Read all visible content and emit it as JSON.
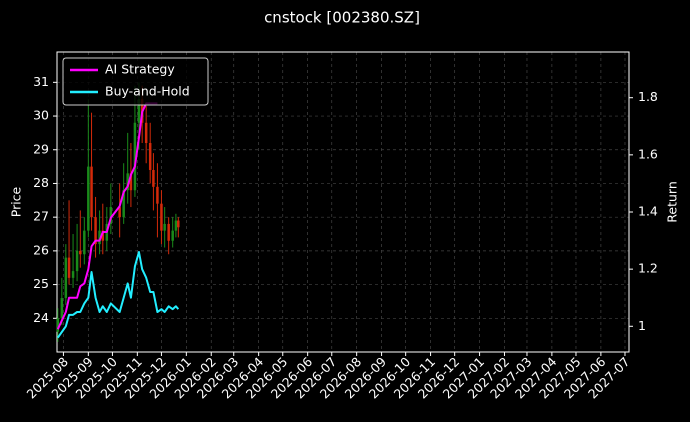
{
  "chart_data": {
    "type": "candlestick-returns",
    "title": "cnstock [002380.SZ]",
    "ylabel": "Price",
    "y2label": "Return",
    "x": [
      "2025-07-25",
      "2025-07-30",
      "2025-08-04",
      "2025-08-08",
      "2025-08-13",
      "2025-08-18",
      "2025-08-22",
      "2025-08-27",
      "2025-09-01",
      "2025-09-05",
      "2025-09-10",
      "2025-09-15",
      "2025-09-19",
      "2025-09-24",
      "2025-09-29",
      "2025-10-10",
      "2025-10-15",
      "2025-10-20",
      "2025-10-24",
      "2025-10-29",
      "2025-11-03",
      "2025-11-07",
      "2025-11-12",
      "2025-11-17",
      "2025-11-21",
      "2025-11-26",
      "2025-12-01",
      "2025-12-05",
      "2025-12-10",
      "2025-12-15",
      "2025-12-19",
      "2025-12-22"
    ],
    "candles": {
      "open": [
        23.6,
        24.0,
        24.6,
        25.8,
        25.2,
        25.4,
        26.0,
        25.9,
        26.6,
        28.5,
        27.0,
        26.2,
        26.6,
        26.3,
        26.8,
        27.3,
        27.0,
        27.8,
        28.3,
        27.8,
        29.8,
        30.5,
        29.8,
        29.2,
        28.4,
        27.9,
        27.4,
        26.6,
        26.8,
        26.3,
        26.6,
        26.9
      ],
      "close": [
        24.0,
        24.6,
        25.8,
        25.2,
        25.4,
        26.0,
        25.9,
        26.6,
        28.5,
        27.0,
        26.2,
        26.6,
        26.3,
        26.8,
        27.3,
        27.0,
        27.8,
        28.3,
        27.8,
        29.8,
        30.5,
        29.8,
        29.2,
        28.4,
        27.9,
        27.4,
        26.6,
        26.8,
        26.3,
        26.6,
        26.9,
        26.7
      ],
      "high": [
        24.3,
        25.2,
        26.2,
        27.5,
        26.5,
        26.8,
        27.2,
        27.0,
        30.5,
        30.1,
        27.6,
        27.2,
        27.4,
        27.3,
        28.0,
        28.0,
        28.6,
        29.5,
        29.2,
        30.9,
        31.0,
        30.9,
        30.3,
        29.8,
        28.9,
        28.6,
        27.8,
        27.3,
        27.0,
        27.0,
        27.1,
        27.0
      ],
      "low": [
        23.3,
        23.8,
        24.4,
        25.0,
        24.9,
        25.1,
        25.5,
        25.6,
        26.4,
        26.6,
        25.8,
        25.9,
        25.9,
        26.0,
        26.5,
        26.4,
        26.8,
        27.4,
        27.3,
        27.6,
        29.0,
        29.2,
        28.6,
        28.0,
        27.2,
        26.4,
        26.2,
        26.1,
        25.9,
        26.1,
        26.4,
        26.4
      ],
      "up_color": "#1a8a1a",
      "down_color": "#d42a0a"
    },
    "series": [
      {
        "name": "AI Strategy",
        "color": "#ff00ff",
        "axis": "y2",
        "values": [
          0.99,
          1.02,
          1.05,
          1.1,
          1.1,
          1.1,
          1.14,
          1.15,
          1.2,
          1.28,
          1.3,
          1.3,
          1.33,
          1.33,
          1.38,
          1.42,
          1.47,
          1.49,
          1.53,
          1.56,
          1.66,
          1.75,
          1.78,
          1.78,
          1.78,
          1.78,
          null,
          null,
          null,
          null,
          null,
          null
        ]
      },
      {
        "name": "Buy-and-Hold",
        "color": "#22eeff",
        "axis": "y2",
        "values": [
          0.96,
          0.98,
          1.0,
          1.04,
          1.04,
          1.05,
          1.05,
          1.08,
          1.1,
          1.19,
          1.1,
          1.05,
          1.07,
          1.05,
          1.08,
          1.05,
          1.1,
          1.15,
          1.1,
          1.21,
          1.26,
          1.2,
          1.17,
          1.12,
          1.12,
          1.05,
          1.06,
          1.05,
          1.07,
          1.06,
          1.07,
          1.06
        ]
      }
    ],
    "xlim": [
      "2025-07-24",
      "2027-07-06"
    ],
    "xticks": [
      "2025-08",
      "2025-09",
      "2025-10",
      "2025-11",
      "2025-12",
      "2026-01",
      "2026-02",
      "2026-03",
      "2026-04",
      "2026-05",
      "2026-06",
      "2026-07",
      "2026-08",
      "2026-09",
      "2026-10",
      "2026-11",
      "2026-12",
      "2027-01",
      "2027-02",
      "2027-03",
      "2027-04",
      "2027-05",
      "2027-06",
      "2027-07"
    ],
    "ylim": [
      23.0,
      31.9
    ],
    "yticks": [
      24,
      25,
      26,
      27,
      28,
      29,
      30,
      31
    ],
    "y2lim": [
      0.91,
      1.96
    ],
    "y2ticks": [
      1.0,
      1.2,
      1.4,
      1.6,
      1.8
    ],
    "grid": true,
    "legend": "upper left"
  }
}
